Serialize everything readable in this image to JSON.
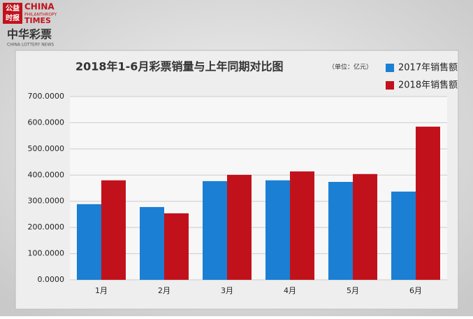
{
  "branding": {
    "publisher": [
      "公益",
      "时报",
      "CHINA",
      "PHILANTHROPY",
      "TIMES"
    ],
    "brand": "中华彩票",
    "brand_sub": "CHINA LOTTERY NEWS"
  },
  "chart_data": {
    "type": "bar",
    "title": "2018年1-6月彩票销量与上年同期对比图",
    "subtitle": "（单位：亿元）",
    "categories": [
      "1月",
      "2月",
      "3月",
      "4月",
      "5月",
      "6月"
    ],
    "series": [
      {
        "name": "2017年销售额",
        "color": "#1b7fd3",
        "values": [
          289,
          278,
          377,
          380,
          374,
          337
        ]
      },
      {
        "name": "2018年销售额",
        "color": "#c1121c",
        "values": [
          380,
          254,
          401,
          414,
          404,
          585
        ]
      }
    ],
    "ylim": [
      0,
      700
    ],
    "yticks": [
      {
        "value": 0,
        "label": "0.0000"
      },
      {
        "value": 100,
        "label": "100.0000"
      },
      {
        "value": 200,
        "label": "200.0000"
      },
      {
        "value": 300,
        "label": "300.0000"
      },
      {
        "value": 400,
        "label": "400.0000"
      },
      {
        "value": 500,
        "label": "500.0000"
      },
      {
        "value": 600,
        "label": "600.0000"
      },
      {
        "value": 700,
        "label": "700.0000"
      }
    ],
    "grid": true,
    "legend": "top-right"
  }
}
